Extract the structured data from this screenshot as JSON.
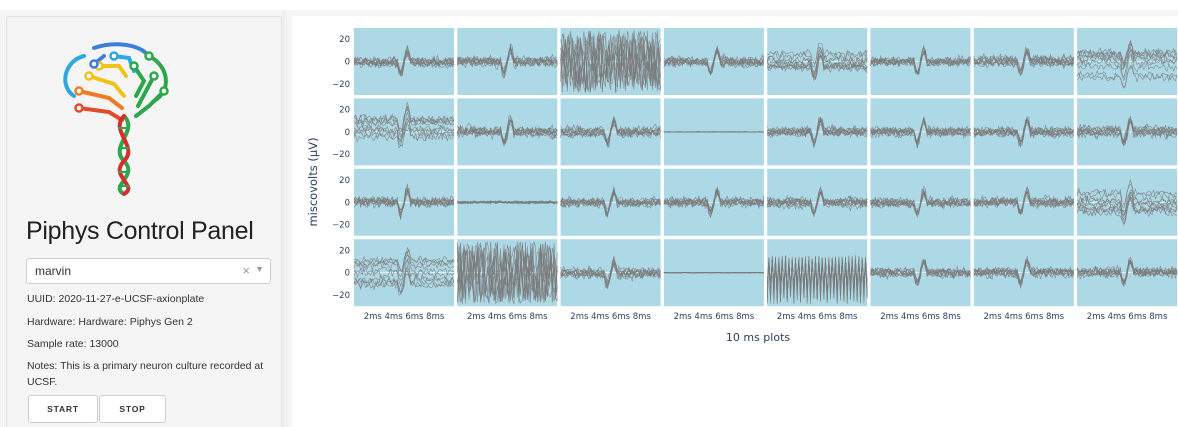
{
  "panel": {
    "title": "Piphys Control Panel",
    "device_select": {
      "value": "marvin",
      "clear_icon": "×",
      "caret_icon": "▼"
    },
    "uuid": "UUID: 2020-11-27-e-UCSF-axionplate",
    "hardware": "Hardware: Hardware: Piphys Gen 2",
    "sample_rate": "Sample rate: 13000",
    "notes": "Notes: This is a primary neuron culture recorded at UCSF.",
    "buttons": {
      "start": "START",
      "stop": "STOP"
    }
  },
  "colors": {
    "plot_bg": "#add8e6",
    "trace": "#7a7a7a",
    "logo_green": "#2aa84a",
    "logo_red": "#d92d2d"
  },
  "chart_data": {
    "type": "line",
    "ylabel": "miscovolts (μV)",
    "xlabel": "10 ms plots",
    "rows": 4,
    "cols": 8,
    "yticks": [
      "20",
      "0",
      "−20"
    ],
    "xtick_labels": "2ms 4ms 6ms 8ms",
    "ylim": [
      -30,
      30
    ]
  }
}
